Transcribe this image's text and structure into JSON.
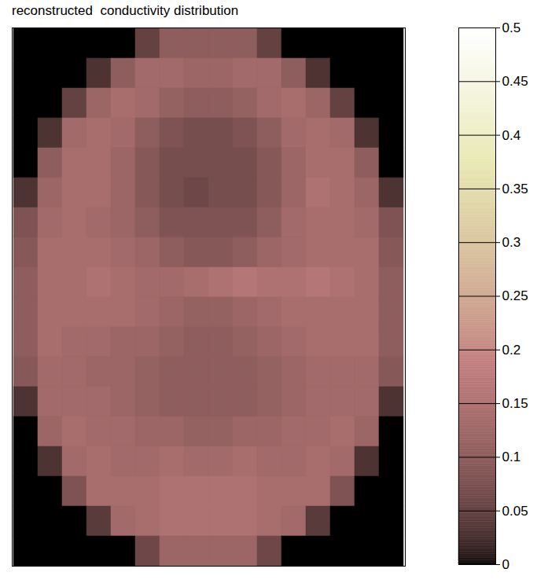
{
  "chart_data": {
    "type": "heatmap",
    "title": "reconstructed  conductivity distribution",
    "tick_labels": false,
    "color": "pink",
    "cells": [
      [
        0,
        0,
        0,
        0,
        0,
        0.05,
        0.1,
        0.1,
        0.1,
        0.1,
        0.05,
        0,
        0,
        0,
        0,
        0
      ],
      [
        0,
        0,
        0,
        0.03,
        0.1,
        0.13,
        0.13,
        0.12,
        0.12,
        0.13,
        0.13,
        0.1,
        0.03,
        0,
        0,
        0
      ],
      [
        0,
        0,
        0.05,
        0.12,
        0.14,
        0.13,
        0.11,
        0.1,
        0.1,
        0.11,
        0.13,
        0.14,
        0.12,
        0.05,
        0,
        0
      ],
      [
        0,
        0.03,
        0.13,
        0.14,
        0.13,
        0.1,
        0.08,
        0.07,
        0.07,
        0.08,
        0.1,
        0.13,
        0.14,
        0.13,
        0.03,
        0
      ],
      [
        0,
        0.1,
        0.14,
        0.14,
        0.12,
        0.09,
        0.07,
        0.07,
        0.07,
        0.07,
        0.09,
        0.12,
        0.14,
        0.14,
        0.1,
        0
      ],
      [
        0.03,
        0.12,
        0.14,
        0.14,
        0.12,
        0.09,
        0.07,
        0.06,
        0.07,
        0.07,
        0.09,
        0.12,
        0.15,
        0.14,
        0.12,
        0.03
      ],
      [
        0.08,
        0.13,
        0.14,
        0.13,
        0.12,
        0.1,
        0.08,
        0.08,
        0.08,
        0.08,
        0.1,
        0.13,
        0.14,
        0.14,
        0.13,
        0.08
      ],
      [
        0.09,
        0.14,
        0.14,
        0.14,
        0.13,
        0.12,
        0.1,
        0.09,
        0.09,
        0.1,
        0.12,
        0.13,
        0.14,
        0.14,
        0.14,
        0.09
      ],
      [
        0.1,
        0.14,
        0.14,
        0.15,
        0.14,
        0.13,
        0.13,
        0.14,
        0.15,
        0.16,
        0.15,
        0.15,
        0.16,
        0.15,
        0.14,
        0.1
      ],
      [
        0.1,
        0.14,
        0.14,
        0.14,
        0.14,
        0.13,
        0.12,
        0.11,
        0.11,
        0.12,
        0.13,
        0.14,
        0.14,
        0.14,
        0.14,
        0.1
      ],
      [
        0.1,
        0.14,
        0.13,
        0.13,
        0.12,
        0.12,
        0.11,
        0.1,
        0.1,
        0.11,
        0.12,
        0.13,
        0.14,
        0.14,
        0.14,
        0.1
      ],
      [
        0.09,
        0.13,
        0.13,
        0.12,
        0.12,
        0.11,
        0.1,
        0.1,
        0.1,
        0.1,
        0.11,
        0.12,
        0.13,
        0.13,
        0.13,
        0.09
      ],
      [
        0.03,
        0.13,
        0.13,
        0.13,
        0.12,
        0.11,
        0.1,
        0.1,
        0.1,
        0.1,
        0.11,
        0.12,
        0.13,
        0.13,
        0.13,
        0.03
      ],
      [
        0,
        0.12,
        0.14,
        0.13,
        0.13,
        0.12,
        0.12,
        0.11,
        0.11,
        0.12,
        0.12,
        0.13,
        0.13,
        0.14,
        0.12,
        0
      ],
      [
        0,
        0.03,
        0.13,
        0.14,
        0.13,
        0.13,
        0.14,
        0.13,
        0.13,
        0.14,
        0.13,
        0.13,
        0.14,
        0.13,
        0.03,
        0
      ],
      [
        0,
        0,
        0.08,
        0.14,
        0.14,
        0.14,
        0.15,
        0.15,
        0.15,
        0.15,
        0.14,
        0.14,
        0.14,
        0.08,
        0,
        0
      ],
      [
        0,
        0,
        0,
        0.04,
        0.13,
        0.14,
        0.15,
        0.15,
        0.15,
        0.15,
        0.14,
        0.13,
        0.04,
        0,
        0,
        0
      ],
      [
        0,
        0,
        0,
        0,
        0,
        0.06,
        0.12,
        0.12,
        0.12,
        0.12,
        0.06,
        0,
        0,
        0,
        0,
        0
      ]
    ],
    "colorbar": {
      "range": [
        0,
        0.5
      ],
      "ticks": [
        0,
        0.05,
        0.1,
        0.15,
        0.2,
        0.25,
        0.3,
        0.35,
        0.4,
        0.45,
        0.5
      ]
    }
  }
}
